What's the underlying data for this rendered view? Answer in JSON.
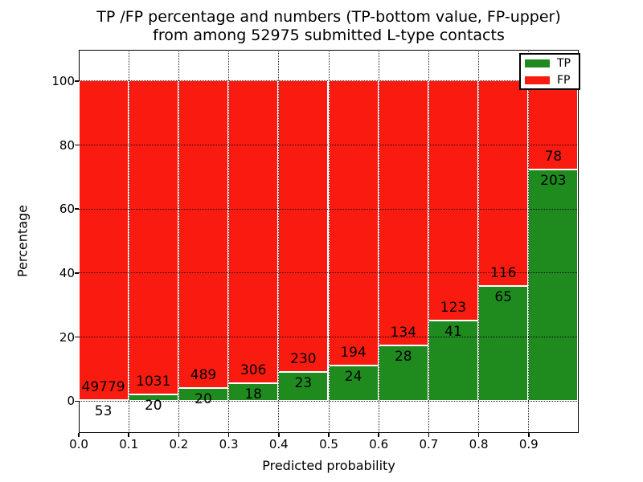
{
  "title": {
    "line1": "TP /FP percentage and numbers (TP-bottom value, FP-upper)",
    "line2": "from among 52975 submitted L-type contacts"
  },
  "chart_data": {
    "type": "bar",
    "subtype": "stacked-percentage",
    "title": "TP /FP percentage and numbers (TP-bottom value, FP-upper) from among 52975 submitted L-type contacts",
    "xlabel": "Predicted probability",
    "ylabel": "Percentage",
    "total_submitted": 52975,
    "bin_starts": [
      0.0,
      0.1,
      0.2,
      0.3,
      0.4,
      0.5,
      0.6,
      0.7,
      0.8,
      0.9
    ],
    "bin_width": 0.1,
    "series": [
      {
        "name": "TP",
        "color": "#1f8b1f",
        "counts": [
          53,
          20,
          20,
          18,
          23,
          24,
          28,
          41,
          65,
          203
        ]
      },
      {
        "name": "FP",
        "color": "#fa1b10",
        "counts": [
          49779,
          1031,
          489,
          306,
          230,
          194,
          134,
          123,
          116,
          78
        ]
      }
    ],
    "bar_edge_color": "#ffffff",
    "xticks": [
      "0.0",
      "0.1",
      "0.2",
      "0.3",
      "0.4",
      "0.5",
      "0.6",
      "0.7",
      "0.8",
      "0.9"
    ],
    "yticks": [
      0,
      20,
      40,
      60,
      80,
      100
    ],
    "xlim": [
      0.0,
      1.0
    ],
    "ylim": [
      -10,
      110
    ],
    "grid": true,
    "grid_style": "dotted",
    "legend_position": "upper right"
  },
  "legend": {
    "items": [
      {
        "label": "TP",
        "color": "#1f8b1f"
      },
      {
        "label": "FP",
        "color": "#fa1b10"
      }
    ]
  }
}
